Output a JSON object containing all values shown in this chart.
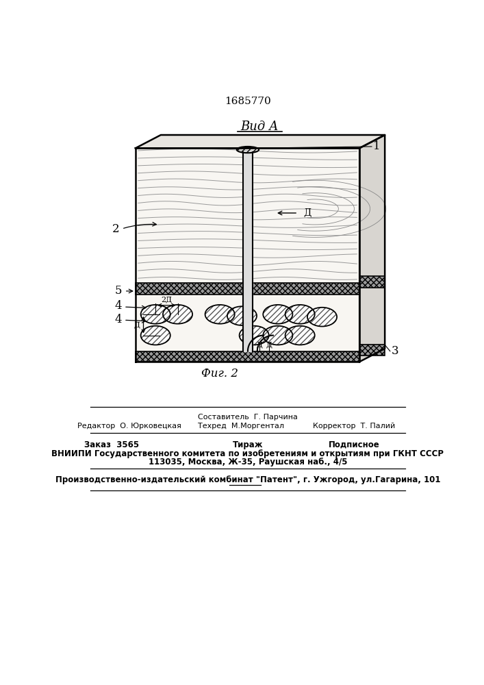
{
  "patent_number": "1685770",
  "view_label": "Вид А",
  "fig_label": "Фиг. 2",
  "bg_color": "#ffffff",
  "line_color": "#000000",
  "footer_sestavitel": "Составитель  Г. Парчина",
  "footer_redaktor": "Редактор  О. Юрковецкая",
  "footer_tehred": "Техред  М.Моргентал",
  "footer_korrektor": "Корректор  Т. Палий",
  "footer_zakaz": "Заказ  3565",
  "footer_tirazh": "Тираж",
  "footer_podpisnoe": "Подписное",
  "footer_vniipи": "ВНИИПИ Государственного комитета по изобретениям и открытиям при ГКНТ СССР",
  "footer_address": "113035, Москва, Ж-35, Раушская наб., 4/5",
  "footer_kombinat": "Производственно-издательский комбинат \"Патент\", г. Ужгород, ул.Гагарина, 101"
}
